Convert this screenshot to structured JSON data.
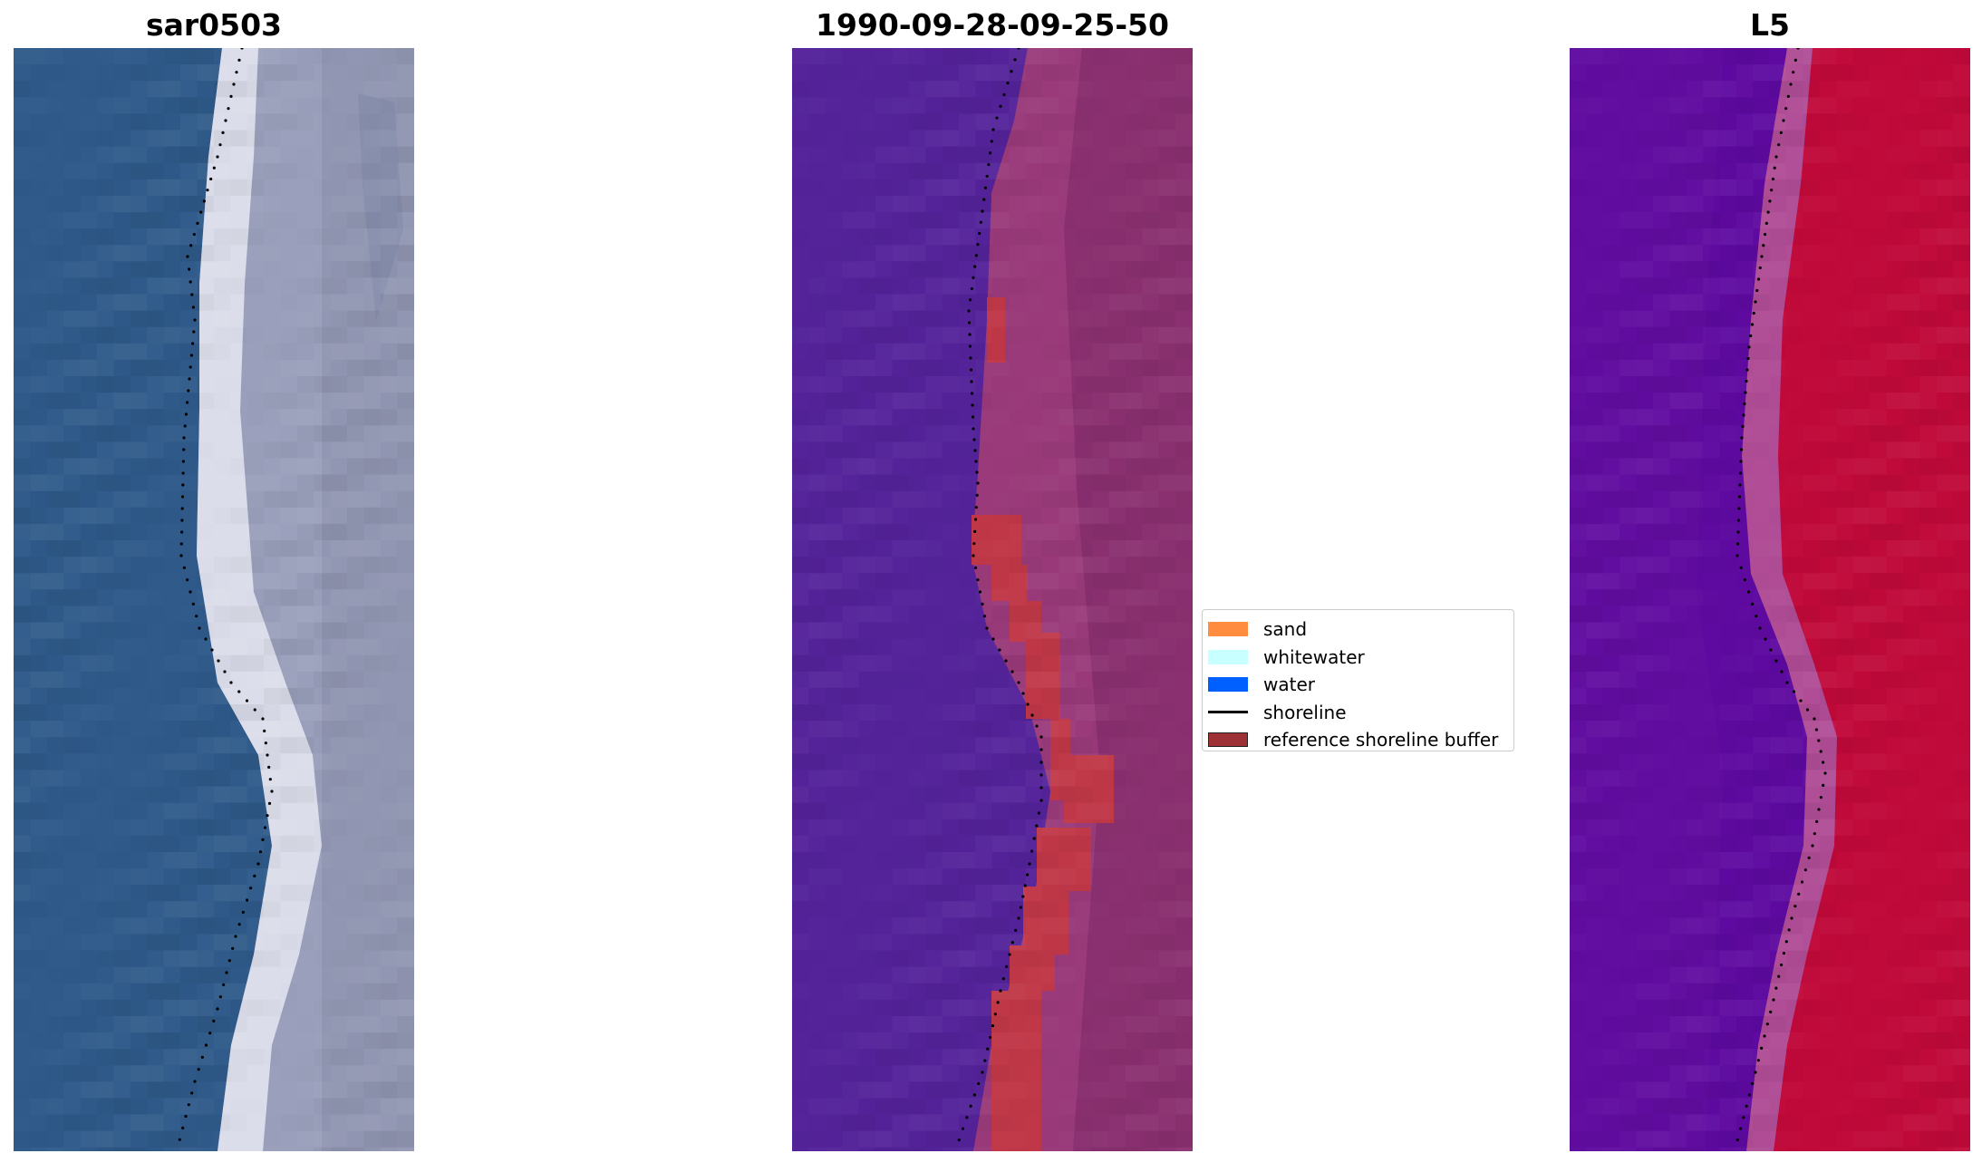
{
  "panels": [
    {
      "title": "sar0503"
    },
    {
      "title": "1990-09-28-09-25-50"
    },
    {
      "title": "L5"
    }
  ],
  "legend": {
    "entries": [
      {
        "label": "sand",
        "type": "patch",
        "color": "#ff8c3f"
      },
      {
        "label": "whitewater",
        "type": "patch",
        "color": "#c8ffff"
      },
      {
        "label": "water",
        "type": "patch",
        "color": "#005fff"
      },
      {
        "label": "shoreline",
        "type": "line",
        "color": "#000000"
      },
      {
        "label": "reference shoreline buffer",
        "type": "patch",
        "color": "#9e3136"
      }
    ]
  },
  "colors": {
    "rgb_water": "#2f5a8a",
    "rgb_sand": "#9aa0bb",
    "rgb_surf": "#f2f2f8",
    "class_water": "#54239a",
    "class_land": "#8e3470",
    "class_buffer": "#c03848",
    "index_water": "#5e0aa0",
    "index_land": "#c00a3a"
  }
}
